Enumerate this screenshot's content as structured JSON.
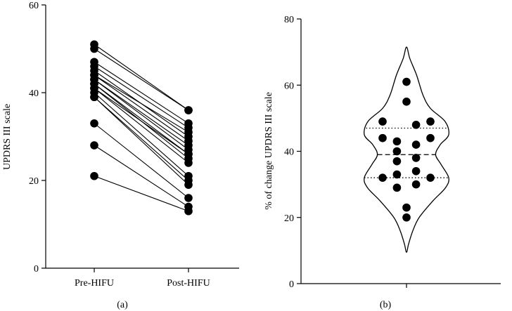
{
  "chart_data": [
    {
      "panel": "(a)",
      "type": "line",
      "ylabel": "UPDRS III scale",
      "categories": [
        "Pre-HIFU",
        "Post-HIFU"
      ],
      "ylim": [
        0,
        60
      ],
      "yticks": [
        0,
        20,
        40,
        60
      ],
      "grid": false,
      "pairs": [
        [
          51,
          36
        ],
        [
          50,
          36
        ],
        [
          47,
          33
        ],
        [
          46,
          32
        ],
        [
          45,
          30
        ],
        [
          44,
          31
        ],
        [
          44,
          29
        ],
        [
          43,
          28
        ],
        [
          43,
          27
        ],
        [
          42,
          26
        ],
        [
          42,
          25
        ],
        [
          41,
          26
        ],
        [
          41,
          24
        ],
        [
          40,
          21
        ],
        [
          39,
          20
        ],
        [
          39,
          19
        ],
        [
          33,
          16
        ],
        [
          28,
          14
        ],
        [
          21,
          13
        ]
      ]
    },
    {
      "panel": "(b)",
      "type": "violin",
      "ylabel": "% of change UPDRS III scale",
      "ylim": [
        0,
        80
      ],
      "yticks": [
        0,
        20,
        40,
        60,
        80
      ],
      "grid": false,
      "median": 39,
      "quartiles": [
        32,
        47
      ],
      "points": [
        {
          "x": -1,
          "y": 49
        },
        {
          "x": 1,
          "y": 49
        },
        {
          "x": -1,
          "y": 44
        },
        {
          "x": 1,
          "y": 44
        },
        {
          "x": -1,
          "y": 32
        },
        {
          "x": 1,
          "y": 32
        },
        {
          "x": 0,
          "y": 61
        },
        {
          "x": 0,
          "y": 55
        },
        {
          "x": -0.4,
          "y": 43
        },
        {
          "x": 0.4,
          "y": 48
        },
        {
          "x": -0.4,
          "y": 40
        },
        {
          "x": 0.4,
          "y": 42
        },
        {
          "x": -0.4,
          "y": 37
        },
        {
          "x": 0.4,
          "y": 38
        },
        {
          "x": -0.4,
          "y": 33
        },
        {
          "x": 0.4,
          "y": 34
        },
        {
          "x": -0.4,
          "y": 29
        },
        {
          "x": 0.4,
          "y": 30
        },
        {
          "x": 0,
          "y": 23
        },
        {
          "x": 0,
          "y": 20
        }
      ],
      "violin_outline": [
        {
          "y": 71.5,
          "half_width": 0.0
        },
        {
          "y": 68,
          "half_width": 0.16
        },
        {
          "y": 63,
          "half_width": 0.48
        },
        {
          "y": 57,
          "half_width": 0.78
        },
        {
          "y": 53,
          "half_width": 1.13
        },
        {
          "y": 49,
          "half_width": 1.83
        },
        {
          "y": 45,
          "half_width": 2.0
        },
        {
          "y": 42,
          "half_width": 1.6
        },
        {
          "y": 39,
          "half_width": 1.38
        },
        {
          "y": 36,
          "half_width": 1.64
        },
        {
          "y": 32,
          "half_width": 2.0
        },
        {
          "y": 29,
          "half_width": 1.85
        },
        {
          "y": 25,
          "half_width": 1.25
        },
        {
          "y": 20,
          "half_width": 0.6
        },
        {
          "y": 16,
          "half_width": 0.3
        },
        {
          "y": 12,
          "half_width": 0.1
        },
        {
          "y": 9.5,
          "half_width": 0.0
        }
      ]
    }
  ]
}
